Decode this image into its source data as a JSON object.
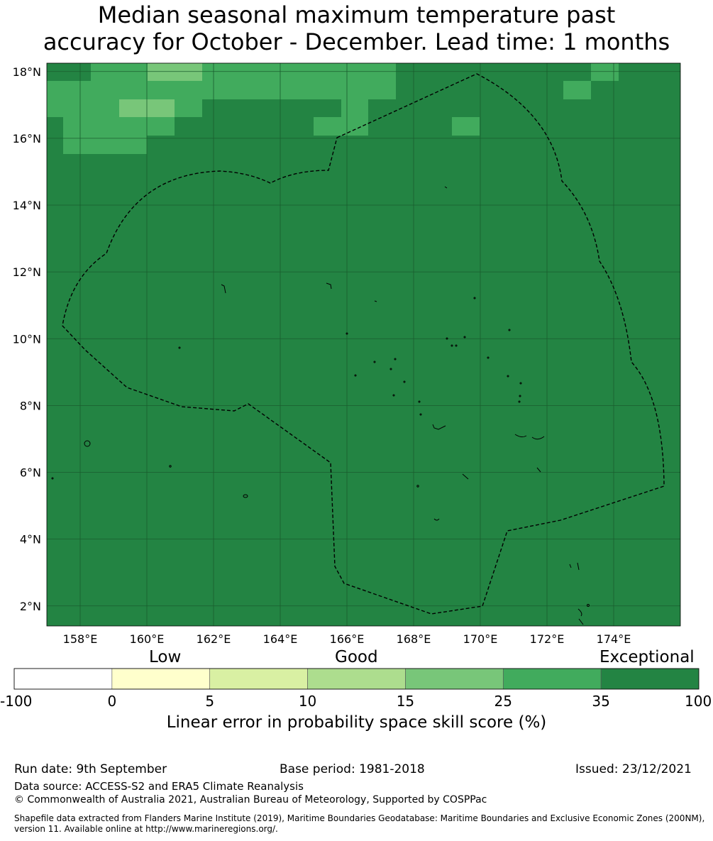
{
  "title": {
    "line1": "Median seasonal maximum temperature past",
    "line2": "accuracy for October - December. Lead time: 1 months"
  },
  "map": {
    "lat_labels": [
      "18°N",
      "16°N",
      "14°N",
      "12°N",
      "10°N",
      "8°N",
      "6°N",
      "4°N",
      "2°N"
    ],
    "lon_labels": [
      "158°E",
      "160°E",
      "162°E",
      "164°E",
      "166°E",
      "168°E",
      "170°E",
      "172°E",
      "174°E"
    ],
    "lat_values": [
      18,
      16,
      14,
      12,
      10,
      8,
      6,
      4,
      2
    ],
    "lon_values": [
      158,
      160,
      162,
      164,
      166,
      168,
      170,
      172,
      174
    ],
    "extent": {
      "lon": [
        157,
        176
      ],
      "lat": [
        1.4,
        18.25
      ]
    },
    "colors": {
      "exceptional": "#238443",
      "good_high": "#41ab5d",
      "good_mid": "#78c679",
      "grid": "#1a5c2e"
    }
  },
  "colorbar": {
    "categories": [
      "Low",
      "Good",
      "Exceptional"
    ],
    "ticks": [
      "-100",
      "0",
      "5",
      "10",
      "15",
      "25",
      "35",
      "100"
    ],
    "colors": [
      "#ffffff",
      "#ffffcc",
      "#d9f0a3",
      "#addd8e",
      "#78c679",
      "#41ab5d",
      "#238443"
    ],
    "label": "Linear error in probability space skill score (%)"
  },
  "footer": {
    "run_date": "Run date: 9th September",
    "base_period": "Base period: 1981-2018",
    "issued": "Issued: 23/12/2021",
    "data_source": "Data source: ACCESS-S2 and ERA5 Climate Reanalysis",
    "copyright": "© Commonwealth of Australia 2021, Australian Bureau of Meteorology, Supported by COSPPac",
    "shapefile": "Shapefile data extracted from Flanders Marine Institute (2019), Maritime Boundaries Geodatabase: Maritime Boundaries and Exclusive Economic Zones (200NM), version 11. Available online at http://www.marineregions.org/."
  }
}
